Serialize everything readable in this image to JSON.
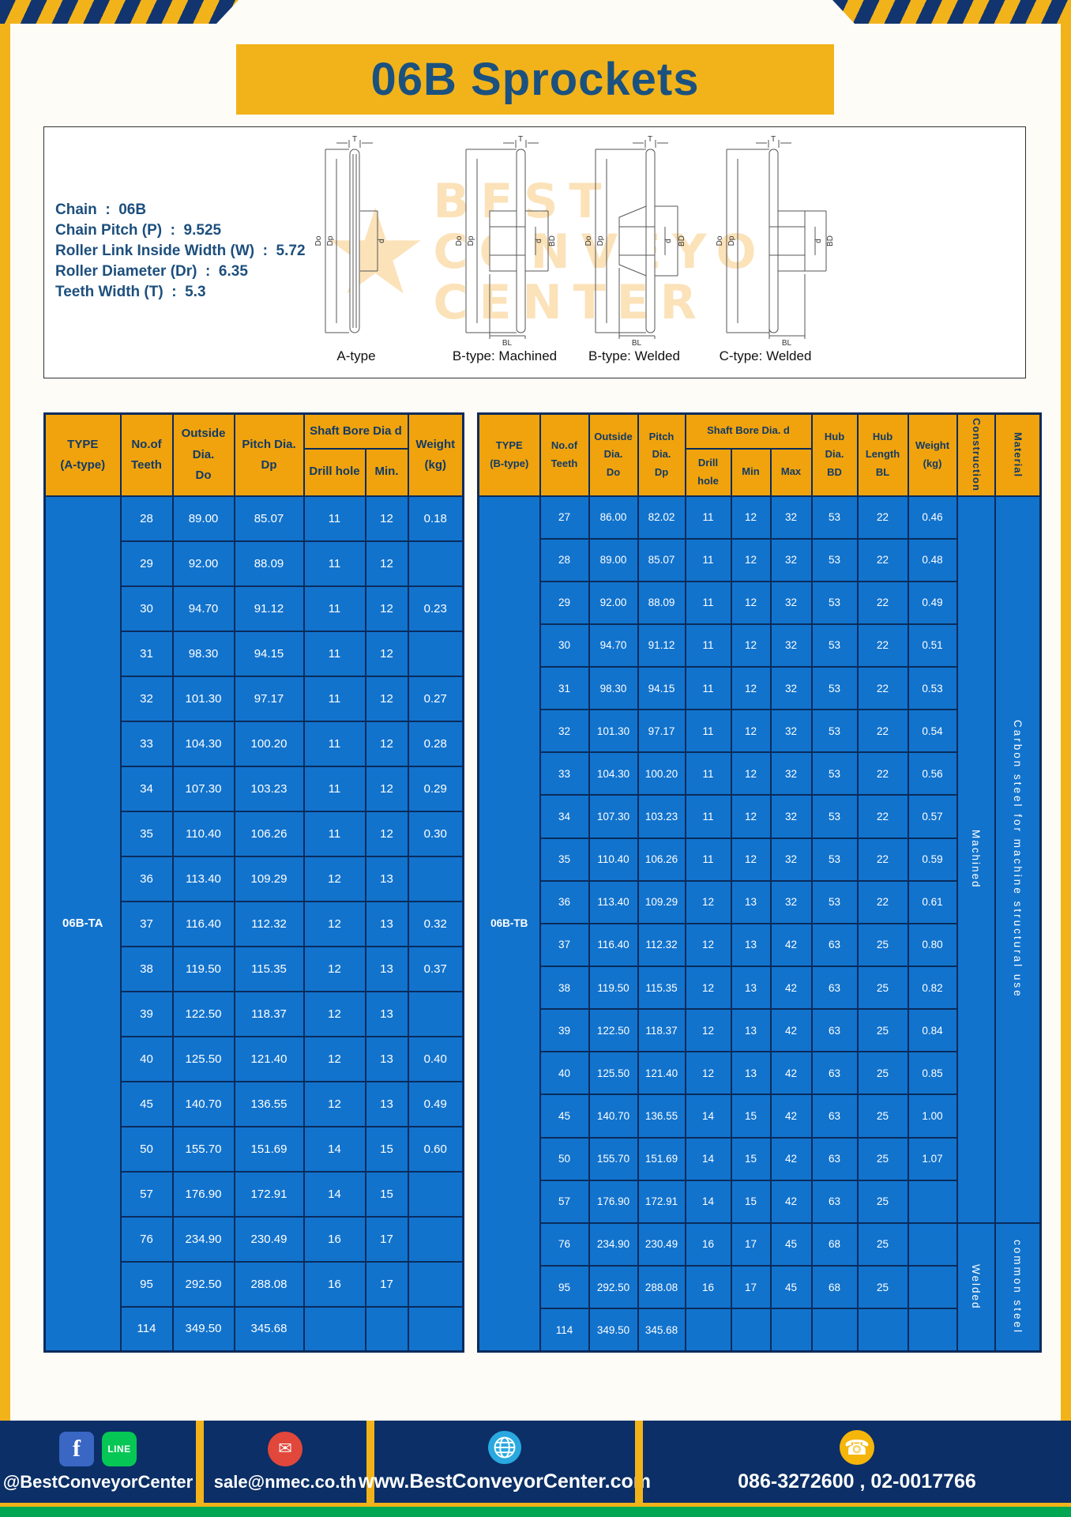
{
  "page": {
    "title": "06B Sprockets"
  },
  "colors": {
    "yellow": "#f2b31a",
    "navy": "#0b2f66",
    "table_blue": "#1273cd",
    "header_amber": "#f0a30d",
    "green": "#00a651"
  },
  "specs": {
    "lines": [
      "Chain  :  06B",
      "Chain Pitch (P)  :  9.525",
      "Roller Link Inside Width (W)  :  5.72",
      "Roller Diameter (Dr)  :  6.35",
      "Teeth Width (T)  :  5.3"
    ],
    "dims": {
      "t": "T",
      "dia_o": "Do",
      "dia_p": "Dp",
      "d": "d",
      "bd": "BD",
      "bl": "BL"
    },
    "diagrams": [
      "A-type",
      "B-type: Machined",
      "B-type: Welded",
      "C-type: Welded"
    ],
    "watermark_lines": [
      "BEST",
      "CONVEYOR",
      "CENTER"
    ]
  },
  "table_a": {
    "type_label": "06B-TA",
    "header": {
      "type": "TYPE\n(A-type)",
      "teeth": "No.of\nTeeth",
      "outside": "Outside\nDia.\nDo",
      "pitch": "Pitch Dia.\nDp",
      "shaft_bore": "Shaft Bore Dia d",
      "drill": "Drill hole",
      "min": "Min.",
      "weight": "Weight\n(kg)"
    },
    "rows": [
      [
        "28",
        "89.00",
        "85.07",
        "11",
        "12",
        "0.18"
      ],
      [
        "29",
        "92.00",
        "88.09",
        "11",
        "12",
        ""
      ],
      [
        "30",
        "94.70",
        "91.12",
        "11",
        "12",
        "0.23"
      ],
      [
        "31",
        "98.30",
        "94.15",
        "11",
        "12",
        ""
      ],
      [
        "32",
        "101.30",
        "97.17",
        "11",
        "12",
        "0.27"
      ],
      [
        "33",
        "104.30",
        "100.20",
        "11",
        "12",
        "0.28"
      ],
      [
        "34",
        "107.30",
        "103.23",
        "11",
        "12",
        "0.29"
      ],
      [
        "35",
        "110.40",
        "106.26",
        "11",
        "12",
        "0.30"
      ],
      [
        "36",
        "113.40",
        "109.29",
        "12",
        "13",
        ""
      ],
      [
        "37",
        "116.40",
        "112.32",
        "12",
        "13",
        "0.32"
      ],
      [
        "38",
        "119.50",
        "115.35",
        "12",
        "13",
        "0.37"
      ],
      [
        "39",
        "122.50",
        "118.37",
        "12",
        "13",
        ""
      ],
      [
        "40",
        "125.50",
        "121.40",
        "12",
        "13",
        "0.40"
      ],
      [
        "45",
        "140.70",
        "136.55",
        "12",
        "13",
        "0.49"
      ],
      [
        "50",
        "155.70",
        "151.69",
        "14",
        "15",
        "0.60"
      ],
      [
        "57",
        "176.90",
        "172.91",
        "14",
        "15",
        ""
      ],
      [
        "76",
        "234.90",
        "230.49",
        "16",
        "17",
        ""
      ],
      [
        "95",
        "292.50",
        "288.08",
        "16",
        "17",
        ""
      ],
      [
        "114",
        "349.50",
        "345.68",
        "",
        "",
        ""
      ]
    ]
  },
  "table_b": {
    "type_label": "06B-TB",
    "header": {
      "type": "TYPE\n(B-type)",
      "teeth": "No.of\nTeeth",
      "outside": "Outside\nDia.\nDo",
      "pitch": "Pitch\nDia.\nDp",
      "shaft_bore": "Shaft Bore Dia.  d",
      "drill": "Drill hole",
      "min": "Min",
      "max": "Max",
      "hub_dia": "Hub\nDia.\nBD",
      "hub_len": "Hub\nLength\nBL",
      "weight": "Weight\n(kg)",
      "construction": "Construction",
      "material": "Material"
    },
    "rows": [
      [
        "27",
        "86.00",
        "82.02",
        "11",
        "12",
        "32",
        "53",
        "22",
        "0.46"
      ],
      [
        "28",
        "89.00",
        "85.07",
        "11",
        "12",
        "32",
        "53",
        "22",
        "0.48"
      ],
      [
        "29",
        "92.00",
        "88.09",
        "11",
        "12",
        "32",
        "53",
        "22",
        "0.49"
      ],
      [
        "30",
        "94.70",
        "91.12",
        "11",
        "12",
        "32",
        "53",
        "22",
        "0.51"
      ],
      [
        "31",
        "98.30",
        "94.15",
        "11",
        "12",
        "32",
        "53",
        "22",
        "0.53"
      ],
      [
        "32",
        "101.30",
        "97.17",
        "11",
        "12",
        "32",
        "53",
        "22",
        "0.54"
      ],
      [
        "33",
        "104.30",
        "100.20",
        "11",
        "12",
        "32",
        "53",
        "22",
        "0.56"
      ],
      [
        "34",
        "107.30",
        "103.23",
        "11",
        "12",
        "32",
        "53",
        "22",
        "0.57"
      ],
      [
        "35",
        "110.40",
        "106.26",
        "11",
        "12",
        "32",
        "53",
        "22",
        "0.59"
      ],
      [
        "36",
        "113.40",
        "109.29",
        "12",
        "13",
        "32",
        "53",
        "22",
        "0.61"
      ],
      [
        "37",
        "116.40",
        "112.32",
        "12",
        "13",
        "42",
        "63",
        "25",
        "0.80"
      ],
      [
        "38",
        "119.50",
        "115.35",
        "12",
        "13",
        "42",
        "63",
        "25",
        "0.82"
      ],
      [
        "39",
        "122.50",
        "118.37",
        "12",
        "13",
        "42",
        "63",
        "25",
        "0.84"
      ],
      [
        "40",
        "125.50",
        "121.40",
        "12",
        "13",
        "42",
        "63",
        "25",
        "0.85"
      ],
      [
        "45",
        "140.70",
        "136.55",
        "14",
        "15",
        "42",
        "63",
        "25",
        "1.00"
      ],
      [
        "50",
        "155.70",
        "151.69",
        "14",
        "15",
        "42",
        "63",
        "25",
        "1.07"
      ],
      [
        "57",
        "176.90",
        "172.91",
        "14",
        "15",
        "42",
        "63",
        "25",
        ""
      ],
      [
        "76",
        "234.90",
        "230.49",
        "16",
        "17",
        "45",
        "68",
        "25",
        ""
      ],
      [
        "95",
        "292.50",
        "288.08",
        "16",
        "17",
        "45",
        "68",
        "25",
        ""
      ],
      [
        "114",
        "349.50",
        "345.68",
        "",
        "",
        "",
        "",
        "",
        ""
      ]
    ],
    "construction": [
      {
        "label": "Machined",
        "rows": 17
      },
      {
        "label": "Welded",
        "rows": 3
      }
    ],
    "material": [
      {
        "label": "Carbon steel for machine structural use",
        "rows": 17
      },
      {
        "label": "common steel",
        "rows": 3
      }
    ]
  },
  "footer": {
    "facebook_label": "f",
    "line_label": "LINE",
    "social_handle": "@BestConveyorCenter",
    "email": "sale@nmec.co.th",
    "website": "www.BestConveyorCenter.com",
    "phones": "086-3272600 , 02-0017766"
  }
}
